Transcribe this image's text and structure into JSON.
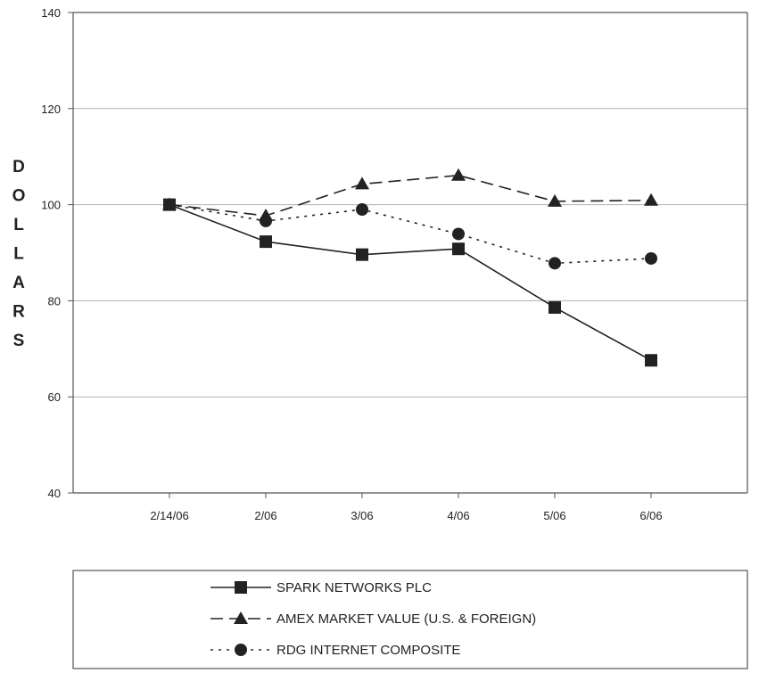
{
  "chart_data": {
    "type": "line",
    "title": "",
    "xlabel": "",
    "ylabel": "DOLLARS",
    "ylim": [
      40,
      140
    ],
    "yticks": [
      40,
      60,
      80,
      100,
      120,
      140
    ],
    "categories": [
      "2/14/06",
      "2/06",
      "3/06",
      "4/06",
      "5/06",
      "6/06"
    ],
    "grid": "horizontal",
    "legend_position": "bottom",
    "series": [
      {
        "name": "SPARK NETWORKS PLC",
        "marker": "square",
        "line": "solid",
        "values": [
          100,
          92.3,
          89.6,
          90.8,
          78.6,
          67.6
        ]
      },
      {
        "name": "AMEX MARKET VALUE (U.S. & FOREIGN)",
        "marker": "triangle",
        "line": "dashed",
        "values": [
          100,
          97.7,
          104.3,
          106.1,
          100.7,
          100.9
        ]
      },
      {
        "name": "RDG INTERNET COMPOSITE",
        "marker": "circle",
        "line": "dotted",
        "values": [
          100,
          96.6,
          99.0,
          93.9,
          87.8,
          88.8
        ]
      }
    ],
    "colors": {
      "line": "#222222",
      "grid": "#b0b0b0",
      "frame": "#555555"
    }
  }
}
